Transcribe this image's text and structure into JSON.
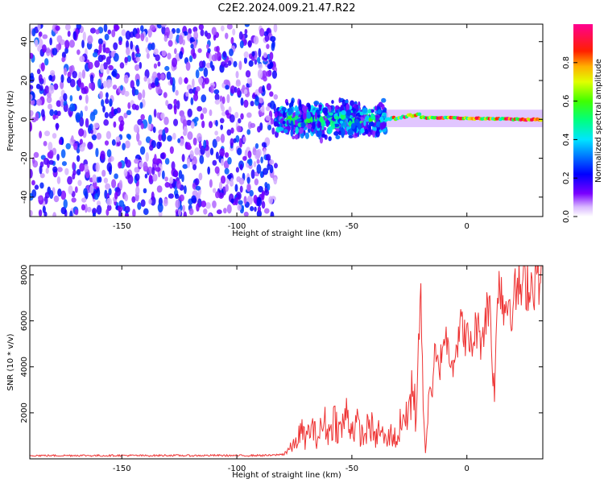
{
  "title": "C2E2.2024.009.21.47.R22",
  "chart_data": [
    {
      "type": "heatmap",
      "xlabel": "Height of straight line (km)",
      "ylabel": "Frequency (Hz)",
      "xlim": [
        -190,
        33
      ],
      "ylim": [
        -50,
        49
      ],
      "xticks": [
        -150,
        -100,
        -50,
        0
      ],
      "yticks": [
        -40,
        -20,
        0,
        20,
        40
      ],
      "colorbar": {
        "label": "Normalized spectral amplitude",
        "range": [
          0,
          1
        ],
        "ticks": [
          0.0,
          0.2,
          0.4,
          0.6,
          0.8
        ],
        "colormap": "rainbow (purple-blue-cyan-green-yellow-red-pink)"
      },
      "regions": [
        {
          "x_range": [
            -190,
            -83
          ],
          "y_range": [
            -50,
            49
          ],
          "description": "scattered low-amplitude noise",
          "amplitude": [
            0.05,
            0.3
          ]
        },
        {
          "x_range": [
            -83,
            -35
          ],
          "y_range": [
            -12,
            12
          ],
          "description": "noisy band around 0 Hz",
          "amplitude": [
            0.1,
            0.6
          ]
        },
        {
          "x_range": [
            -35,
            33
          ],
          "y_range": [
            -4,
            5
          ],
          "description": "narrow carrier line near 0 Hz",
          "amplitude": [
            0.4,
            1.0
          ]
        }
      ]
    },
    {
      "type": "line",
      "xlabel": "Height of straight line (km)",
      "ylabel": "SNR (10 * v/v)",
      "xlim": [
        -190,
        33
      ],
      "ylim": [
        0,
        8400
      ],
      "xticks": [
        -150,
        -100,
        -50,
        0
      ],
      "yticks": [
        2000,
        4000,
        6000,
        8000
      ],
      "color": "#ee3333",
      "x": [
        -190,
        -180,
        -170,
        -160,
        -150,
        -140,
        -130,
        -120,
        -110,
        -100,
        -90,
        -85,
        -80,
        -78,
        -75,
        -72,
        -70,
        -68,
        -65,
        -62,
        -60,
        -58,
        -55,
        -52,
        -50,
        -48,
        -45,
        -42,
        -40,
        -38,
        -35,
        -33,
        -30,
        -28,
        -26,
        -24,
        -22,
        -21,
        -20,
        -19,
        -18,
        -17,
        -16,
        -15,
        -14,
        -12,
        -10,
        -8,
        -6,
        -4,
        -2,
        0,
        2,
        4,
        6,
        8,
        10,
        11,
        12,
        13,
        14,
        16,
        18,
        20,
        22,
        24,
        26,
        28,
        30,
        33
      ],
      "y": [
        150,
        140,
        150,
        140,
        150,
        140,
        150,
        140,
        150,
        140,
        150,
        150,
        200,
        350,
        600,
        1200,
        800,
        1400,
        900,
        1600,
        1100,
        1800,
        1200,
        2000,
        1300,
        1500,
        900,
        1600,
        800,
        1300,
        700,
        1100,
        800,
        2200,
        1500,
        3200,
        1700,
        5500,
        7500,
        2000,
        300,
        1800,
        3500,
        2500,
        4500,
        3800,
        5500,
        4800,
        4300,
        5200,
        5800,
        5200,
        4800,
        5800,
        5200,
        6100,
        7000,
        4200,
        2900,
        5800,
        8400,
        6500,
        7000,
        6600,
        7600,
        7200,
        7800,
        7500,
        8000,
        8200
      ]
    }
  ]
}
